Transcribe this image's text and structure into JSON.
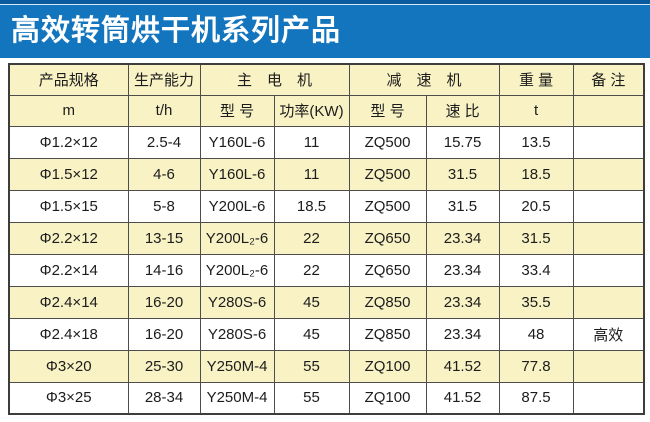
{
  "banner": {
    "title": "高效转筒烘干机系列产品",
    "bg_color": "#1375bd",
    "stripe_color": "#0b5c9f",
    "text_color": "#ffffff"
  },
  "table": {
    "header_top": {
      "spec": "产品规格",
      "capacity": "生产能力",
      "main_motor": "主　电　机",
      "reducer": "减　速　机",
      "weight": "重 量",
      "remark": "备 注"
    },
    "header_sub": [
      "m",
      "t/h",
      "型 号",
      "功率(KW)",
      "型 号",
      "速 比",
      "t",
      ""
    ],
    "rows": [
      [
        "Φ1.2×12",
        "2.5-4",
        "Y160L-6",
        "11",
        "ZQ500",
        "15.75",
        "13.5",
        ""
      ],
      [
        "Φ1.5×12",
        "4-6",
        "Y160L-6",
        "11",
        "ZQ500",
        "31.5",
        "18.5",
        ""
      ],
      [
        "Φ1.5×15",
        "5-8",
        "Y200L-6",
        "18.5",
        "ZQ500",
        "31.5",
        "20.5",
        ""
      ],
      [
        "Φ2.2×12",
        "13-15",
        "Y200L₂-6",
        "22",
        "ZQ650",
        "23.34",
        "31.5",
        ""
      ],
      [
        "Φ2.2×14",
        "14-16",
        "Y200L₂-6",
        "22",
        "ZQ650",
        "23.34",
        "33.4",
        ""
      ],
      [
        "Φ2.4×14",
        "16-20",
        "Y280S-6",
        "45",
        "ZQ850",
        "23.34",
        "35.5",
        ""
      ],
      [
        "Φ2.4×18",
        "16-20",
        "Y280S-6",
        "45",
        "ZQ850",
        "23.34",
        "48",
        "高效"
      ],
      [
        "Φ3×20",
        "25-30",
        "Y250M-4",
        "55",
        "ZQ100",
        "41.52",
        "77.8",
        ""
      ],
      [
        "Φ3×25",
        "28-34",
        "Y250M-4",
        "55",
        "ZQ100",
        "41.52",
        "87.5",
        ""
      ]
    ],
    "colors": {
      "header_bg": "#f8f2c4",
      "row_alt_bg": "#f8f2c4",
      "row_bg": "#ffffff",
      "border": "#4d4d4d"
    }
  }
}
